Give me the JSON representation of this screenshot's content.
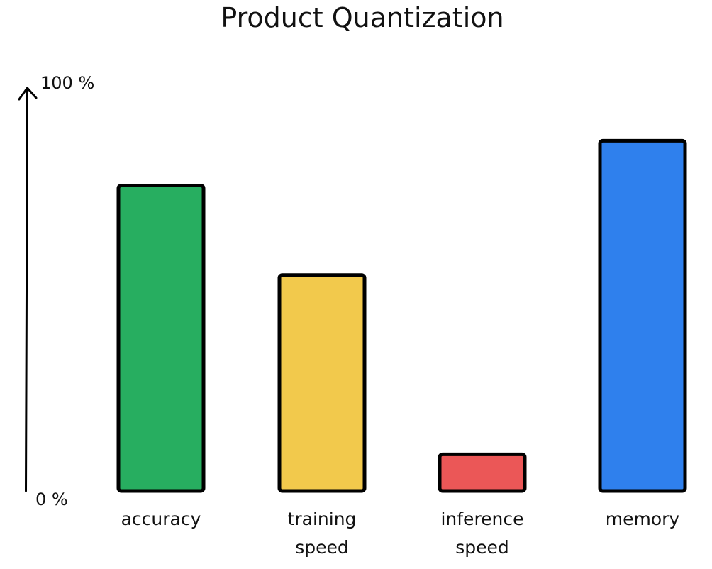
{
  "chart_data": {
    "type": "bar",
    "title": "Product Quantization",
    "categories": [
      "accuracy",
      "training speed",
      "inference speed",
      "memory"
    ],
    "category_lines": [
      [
        "accuracy"
      ],
      [
        "training",
        "speed"
      ],
      [
        "inference",
        "speed"
      ],
      [
        "memory"
      ]
    ],
    "values": [
      75,
      53,
      9,
      86
    ],
    "colors": [
      "#27ae60",
      "#f2c94c",
      "#eb5757",
      "#2f80ed"
    ],
    "y_tick_labels": [
      "0 %",
      "100 %"
    ],
    "ylim": [
      0,
      100
    ],
    "xlabel": "",
    "ylabel": "",
    "grid": false,
    "legend": "none"
  }
}
